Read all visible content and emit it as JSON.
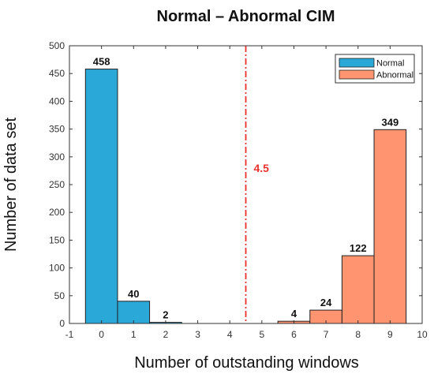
{
  "chart_data": {
    "type": "bar",
    "title": "Normal – Abnormal CIM",
    "xlabel": "Number of outstanding windows",
    "ylabel": "Number of data set",
    "xlim": [
      -1,
      10
    ],
    "ylim": [
      0,
      500
    ],
    "xticks": [
      -1,
      0,
      1,
      2,
      3,
      4,
      5,
      6,
      7,
      8,
      9,
      10
    ],
    "yticks": [
      0,
      50,
      100,
      150,
      200,
      250,
      300,
      350,
      400,
      450,
      500
    ],
    "grid": false,
    "legend_position": "top-right",
    "series": [
      {
        "name": "Normal",
        "color": "#2aa8d8",
        "x": [
          0,
          1,
          2
        ],
        "values": [
          458,
          40,
          2
        ],
        "labels": [
          "458",
          "40",
          "2"
        ]
      },
      {
        "name": "Abnormal",
        "color": "#ff9470",
        "x": [
          6,
          7,
          8,
          9
        ],
        "values": [
          4,
          24,
          122,
          349
        ],
        "labels": [
          "4",
          "24",
          "122",
          "349"
        ]
      }
    ],
    "threshold": {
      "x": 4.5,
      "label": "4.5",
      "color": "#e8322d"
    }
  }
}
